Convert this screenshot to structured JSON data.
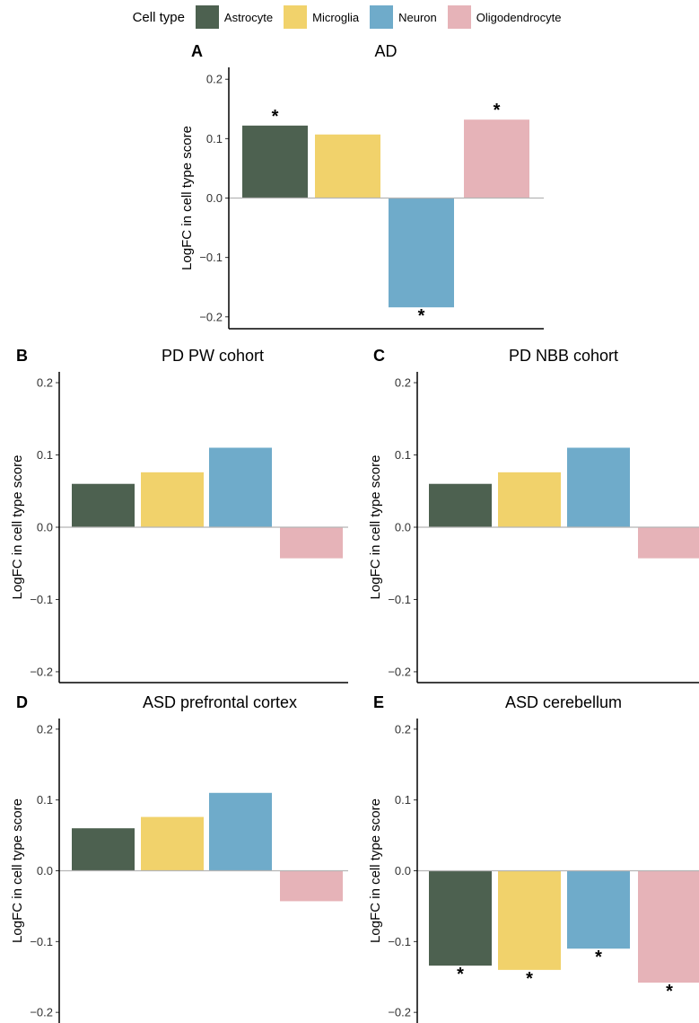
{
  "legend": {
    "title": "Cell type",
    "items": [
      {
        "label": "Astrocyte",
        "color": "#4d6150"
      },
      {
        "label": "Microglia",
        "color": "#f1d26b"
      },
      {
        "label": "Neuron",
        "color": "#6fabca"
      },
      {
        "label": "Oligodendrocyte",
        "color": "#e6b3b8"
      }
    ]
  },
  "chart_data": [
    {
      "type": "bar",
      "panel": "A",
      "title": "AD",
      "ylabel": "LogFC in cell type score",
      "categories": [
        "Astrocyte",
        "Microglia",
        "Neuron",
        "Oligodendrocyte"
      ],
      "values": [
        0.122,
        0.107,
        -0.184,
        0.132
      ],
      "significant": [
        true,
        false,
        true,
        true
      ],
      "ylim": [
        -0.22,
        0.22
      ],
      "yticks": [
        0.2,
        0.1,
        0.0,
        -0.1,
        -0.2
      ],
      "yticklabels": [
        "0.2",
        "0.1",
        "0.0",
        "−0.1",
        "−0.2"
      ],
      "significance_marker": "*"
    },
    {
      "type": "bar",
      "panel": "B",
      "title": "PD PW cohort",
      "ylabel": "LogFC in cell type score",
      "categories": [
        "Astrocyte",
        "Microglia",
        "Neuron",
        "Oligodendrocyte"
      ],
      "values": [
        0.06,
        0.076,
        0.11,
        -0.043
      ],
      "significant": [
        false,
        false,
        false,
        false
      ],
      "ylim": [
        -0.215,
        0.215
      ],
      "yticks": [
        0.2,
        0.1,
        0.0,
        -0.1,
        -0.2
      ],
      "yticklabels": [
        "0.2",
        "0.1",
        "0.0",
        "−0.1",
        "−0.2"
      ],
      "significance_marker": "*"
    },
    {
      "type": "bar",
      "panel": "C",
      "title": "PD NBB cohort",
      "ylabel": "LogFC in cell type score",
      "categories": [
        "Astrocyte",
        "Microglia",
        "Neuron",
        "Oligodendrocyte"
      ],
      "values": [
        0.06,
        0.076,
        0.11,
        -0.043
      ],
      "significant": [
        false,
        false,
        false,
        false
      ],
      "ylim": [
        -0.215,
        0.215
      ],
      "yticks": [
        0.2,
        0.1,
        0.0,
        -0.1,
        -0.2
      ],
      "yticklabels": [
        "0.2",
        "0.1",
        "0.0",
        "−0.1",
        "−0.2"
      ],
      "significance_marker": "*"
    },
    {
      "type": "bar",
      "panel": "D",
      "title": "ASD prefrontal cortex",
      "ylabel": "LogFC in cell type score",
      "categories": [
        "Astrocyte",
        "Microglia",
        "Neuron",
        "Oligodendrocyte"
      ],
      "values": [
        0.06,
        0.076,
        0.11,
        -0.043
      ],
      "significant": [
        false,
        false,
        false,
        false
      ],
      "ylim": [
        -0.215,
        0.215
      ],
      "yticks": [
        0.2,
        0.1,
        0.0,
        -0.1,
        -0.2
      ],
      "yticklabels": [
        "0.2",
        "0.1",
        "0.0",
        "−0.1",
        "−0.2"
      ],
      "significance_marker": "*"
    },
    {
      "type": "bar",
      "panel": "E",
      "title": "ASD cerebellum",
      "ylabel": "LogFC in cell type score",
      "categories": [
        "Astrocyte",
        "Microglia",
        "Neuron",
        "Oligodendrocyte"
      ],
      "values": [
        -0.134,
        -0.14,
        -0.11,
        -0.158
      ],
      "significant": [
        true,
        true,
        true,
        true
      ],
      "ylim": [
        -0.215,
        0.215
      ],
      "yticks": [
        0.2,
        0.1,
        0.0,
        -0.1,
        -0.2
      ],
      "yticklabels": [
        "0.2",
        "0.1",
        "0.0",
        "−0.1",
        "−0.2"
      ],
      "significance_marker": "*"
    }
  ]
}
